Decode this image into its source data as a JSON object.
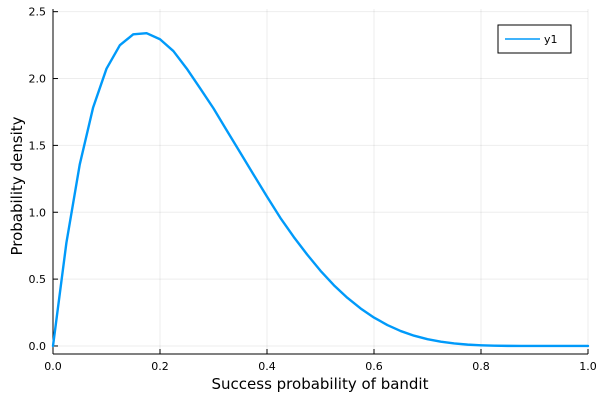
{
  "chart_data": {
    "type": "line",
    "title": "",
    "xlabel": "Success probability of bandit",
    "ylabel": "Probability density",
    "xlim": [
      0.0,
      1.0
    ],
    "ylim": [
      -0.06,
      2.52
    ],
    "xticks": [
      0.0,
      0.2,
      0.4,
      0.6,
      0.8,
      1.0
    ],
    "xtick_labels": [
      "0.0",
      "0.2",
      "0.4",
      "0.6",
      "0.8",
      "1.0"
    ],
    "yticks": [
      0.0,
      0.5,
      1.0,
      1.5,
      2.0,
      2.5
    ],
    "ytick_labels": [
      "0.0",
      "0.5",
      "1.0",
      "1.5",
      "2.0",
      "2.5"
    ],
    "grid": true,
    "legend_position": "top-right",
    "series": [
      {
        "name": "y1",
        "color": "#009AFA",
        "x": [
          0.0,
          0.025,
          0.05,
          0.075,
          0.1,
          0.125,
          0.15,
          0.175,
          0.2,
          0.225,
          0.25,
          0.275,
          0.3,
          0.325,
          0.35,
          0.375,
          0.4,
          0.425,
          0.45,
          0.475,
          0.5,
          0.525,
          0.55,
          0.575,
          0.6,
          0.625,
          0.65,
          0.675,
          0.7,
          0.725,
          0.75,
          0.775,
          0.8,
          0.825,
          0.85,
          0.875,
          0.9,
          0.925,
          0.95,
          0.975,
          1.0
        ],
        "y": [
          0.0,
          0.7704,
          1.3577,
          1.7837,
          2.0736,
          2.2492,
          2.3308,
          2.339,
          2.2938,
          2.2053,
          2.0742,
          1.9271,
          1.7769,
          1.6103,
          1.4455,
          1.2806,
          1.1168,
          0.9579,
          0.815,
          0.6839,
          0.5625,
          0.4545,
          0.3609,
          0.2803,
          0.2122,
          0.1564,
          0.1115,
          0.0768,
          0.0507,
          0.0317,
          0.0186,
          0.0101,
          0.0051,
          0.0022,
          0.0008,
          0.0002,
          0.0,
          0.0,
          0.0,
          0.0,
          0.0
        ]
      }
    ]
  }
}
